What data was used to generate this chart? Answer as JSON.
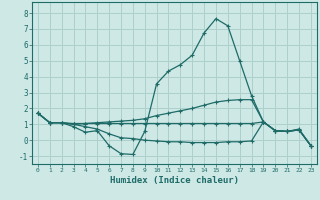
{
  "xlabel": "Humidex (Indice chaleur)",
  "xlim": [
    -0.5,
    23.5
  ],
  "ylim": [
    -1.5,
    8.7
  ],
  "yticks": [
    -1,
    0,
    1,
    2,
    3,
    4,
    5,
    6,
    7,
    8
  ],
  "xticks": [
    0,
    1,
    2,
    3,
    4,
    5,
    6,
    7,
    8,
    9,
    10,
    11,
    12,
    13,
    14,
    15,
    16,
    17,
    18,
    19,
    20,
    21,
    22,
    23
  ],
  "background_color": "#cde8e5",
  "line_color": "#1e6b68",
  "grid_color": "#aed0cc",
  "line1_y": [
    1.7,
    1.1,
    1.1,
    0.85,
    0.5,
    0.6,
    -0.35,
    -0.85,
    -0.9,
    0.55,
    3.55,
    4.35,
    4.75,
    5.35,
    6.75,
    7.65,
    7.2,
    5.0,
    2.8,
    1.15,
    0.6,
    0.55,
    0.7,
    -0.35
  ],
  "line2_y": [
    1.7,
    1.1,
    1.1,
    1.0,
    1.05,
    1.1,
    1.15,
    1.2,
    1.25,
    1.35,
    1.55,
    1.7,
    1.85,
    2.0,
    2.2,
    2.4,
    2.5,
    2.55,
    2.55,
    1.15,
    0.6,
    0.55,
    0.65,
    -0.35
  ],
  "line3_y": [
    1.7,
    1.1,
    1.1,
    1.05,
    1.05,
    1.05,
    1.05,
    1.05,
    1.05,
    1.05,
    1.05,
    1.05,
    1.05,
    1.05,
    1.05,
    1.05,
    1.05,
    1.05,
    1.05,
    1.15,
    0.6,
    0.55,
    0.65,
    -0.35
  ],
  "line4_y": [
    1.7,
    1.1,
    1.1,
    1.0,
    0.85,
    0.7,
    0.4,
    0.15,
    0.1,
    0.0,
    -0.05,
    -0.1,
    -0.1,
    -0.15,
    -0.15,
    -0.15,
    -0.1,
    -0.1,
    -0.05,
    1.15,
    0.6,
    0.55,
    0.65,
    -0.35
  ]
}
